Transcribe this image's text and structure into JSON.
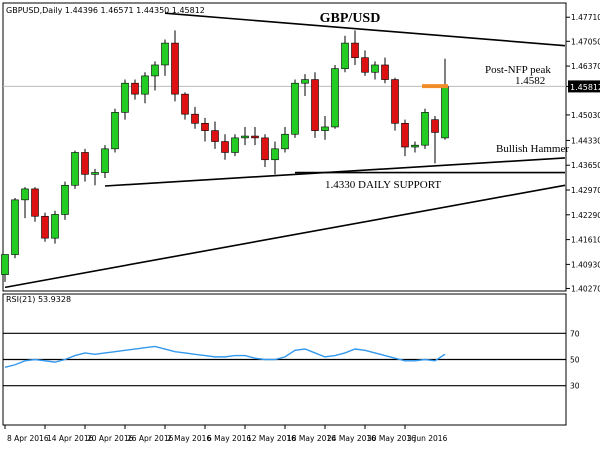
{
  "chart_data": {
    "type": "candlestick",
    "header": "GBPUSD,Daily  1.44396 1.46571 1.44350 1.45812",
    "title": "GBP/USD",
    "ylim": [
      1.402,
      1.481
    ],
    "y_ticks": [
      "1.47710",
      "1.47050",
      "1.46370",
      "1.45812",
      "1.45030",
      "1.44330",
      "1.43650",
      "1.42970",
      "1.42290",
      "1.41610",
      "1.40930",
      "1.40270"
    ],
    "last_price_label": "1.45812",
    "x_ticks": [
      {
        "label": "8 Apr 2016",
        "index": 0
      },
      {
        "label": "14 Apr 2016",
        "index": 4
      },
      {
        "label": "20 Apr 2016",
        "index": 8
      },
      {
        "label": "26 Apr 2016",
        "index": 12
      },
      {
        "label": "2 May 2016",
        "index": 16
      },
      {
        "label": "6 May 2016",
        "index": 20
      },
      {
        "label": "12 May 2016",
        "index": 24
      },
      {
        "label": "18 May 2016",
        "index": 28
      },
      {
        "label": "24 May 2016",
        "index": 32
      },
      {
        "label": "30 May 2016",
        "index": 36
      },
      {
        "label": "3 Jun 2016",
        "index": 40
      }
    ],
    "candles": [
      [
        1.4065,
        1.412,
        1.4045,
        1.412
      ],
      [
        1.412,
        1.4275,
        1.411,
        1.427
      ],
      [
        1.427,
        1.4305,
        1.422,
        1.43
      ],
      [
        1.43,
        1.4305,
        1.421,
        1.4225
      ],
      [
        1.4225,
        1.4235,
        1.4155,
        1.4165
      ],
      [
        1.4165,
        1.424,
        1.415,
        1.423
      ],
      [
        1.423,
        1.432,
        1.4215,
        1.431
      ],
      [
        1.431,
        1.4405,
        1.43,
        1.44
      ],
      [
        1.44,
        1.441,
        1.432,
        1.434
      ],
      [
        1.434,
        1.4355,
        1.431,
        1.4345
      ],
      [
        1.4345,
        1.442,
        1.433,
        1.441
      ],
      [
        1.441,
        1.452,
        1.44,
        1.451
      ],
      [
        1.451,
        1.46,
        1.449,
        1.459
      ],
      [
        1.459,
        1.46,
        1.4545,
        1.456
      ],
      [
        1.456,
        1.462,
        1.4535,
        1.461
      ],
      [
        1.461,
        1.465,
        1.457,
        1.464
      ],
      [
        1.464,
        1.471,
        1.461,
        1.47
      ],
      [
        1.47,
        1.4735,
        1.454,
        1.456
      ],
      [
        1.456,
        1.4565,
        1.449,
        1.4505
      ],
      [
        1.4505,
        1.4525,
        1.4465,
        1.448
      ],
      [
        1.448,
        1.4495,
        1.443,
        1.446
      ],
      [
        1.446,
        1.4485,
        1.441,
        1.443
      ],
      [
        1.443,
        1.445,
        1.438,
        1.44
      ],
      [
        1.44,
        1.445,
        1.439,
        1.444
      ],
      [
        1.444,
        1.447,
        1.442,
        1.4445
      ],
      [
        1.4445,
        1.447,
        1.442,
        1.444
      ],
      [
        1.444,
        1.445,
        1.436,
        1.438
      ],
      [
        1.438,
        1.443,
        1.434,
        1.441
      ],
      [
        1.441,
        1.447,
        1.44,
        1.445
      ],
      [
        1.445,
        1.46,
        1.444,
        1.459
      ],
      [
        1.459,
        1.4615,
        1.4555,
        1.46
      ],
      [
        1.46,
        1.462,
        1.444,
        1.446
      ],
      [
        1.446,
        1.45,
        1.4435,
        1.447
      ],
      [
        1.447,
        1.464,
        1.4465,
        1.463
      ],
      [
        1.463,
        1.472,
        1.462,
        1.47
      ],
      [
        1.47,
        1.4735,
        1.464,
        1.466
      ],
      [
        1.466,
        1.468,
        1.461,
        1.462
      ],
      [
        1.462,
        1.465,
        1.46,
        1.464
      ],
      [
        1.464,
        1.466,
        1.459,
        1.46
      ],
      [
        1.46,
        1.4605,
        1.446,
        1.448
      ],
      [
        1.448,
        1.449,
        1.439,
        1.4415
      ],
      [
        1.4415,
        1.443,
        1.44,
        1.442
      ],
      [
        1.442,
        1.452,
        1.441,
        1.451
      ],
      [
        1.449,
        1.45,
        1.437,
        1.4455
      ],
      [
        1.444,
        1.4657,
        1.4435,
        1.4581
      ]
    ],
    "trendlines": [
      {
        "name": "upper-resistance",
        "points": [
          [
            16,
            1.4782
          ],
          [
            56,
            1.4693
          ]
        ]
      },
      {
        "name": "daily-support",
        "points": [
          [
            10,
            1.4308
          ],
          [
            56,
            1.4385
          ]
        ]
      },
      {
        "name": "lower-support",
        "points": [
          [
            29,
            1.4345
          ],
          [
            56,
            1.4345
          ]
        ]
      },
      {
        "name": "long-uptrend",
        "points": [
          [
            0,
            1.403
          ],
          [
            56,
            1.431
          ]
        ]
      }
    ],
    "post_nfp_marker": {
      "index_from": 42,
      "index_to": 44,
      "value": 1.4582
    },
    "annotations": {
      "post_nfp": "Post-NFP peak",
      "post_nfp_value": "1.4582",
      "support": "1.4330 DAILY SUPPORT",
      "hammer": "Bullish Hammer"
    },
    "colors": {
      "bull": "#22cc22",
      "bear": "#dd1111",
      "rsi": "#3399ee",
      "marker": "#f28c28",
      "line": "#000000"
    },
    "rsi": {
      "label": "RSI(21) 53.9328",
      "ylim": [
        0,
        100
      ],
      "levels": [
        70,
        50,
        30
      ],
      "level_labels": [
        "70",
        "50",
        "30"
      ],
      "values": [
        44,
        46,
        49,
        50,
        49,
        48,
        50,
        53,
        55,
        54,
        55,
        56,
        57,
        58,
        59,
        60,
        58,
        56,
        55,
        54,
        53,
        52,
        52,
        53,
        53,
        51,
        50,
        50,
        52,
        57,
        58,
        55,
        52,
        53,
        55,
        58,
        57,
        55,
        53,
        51,
        49,
        49,
        50,
        49,
        54
      ]
    }
  }
}
